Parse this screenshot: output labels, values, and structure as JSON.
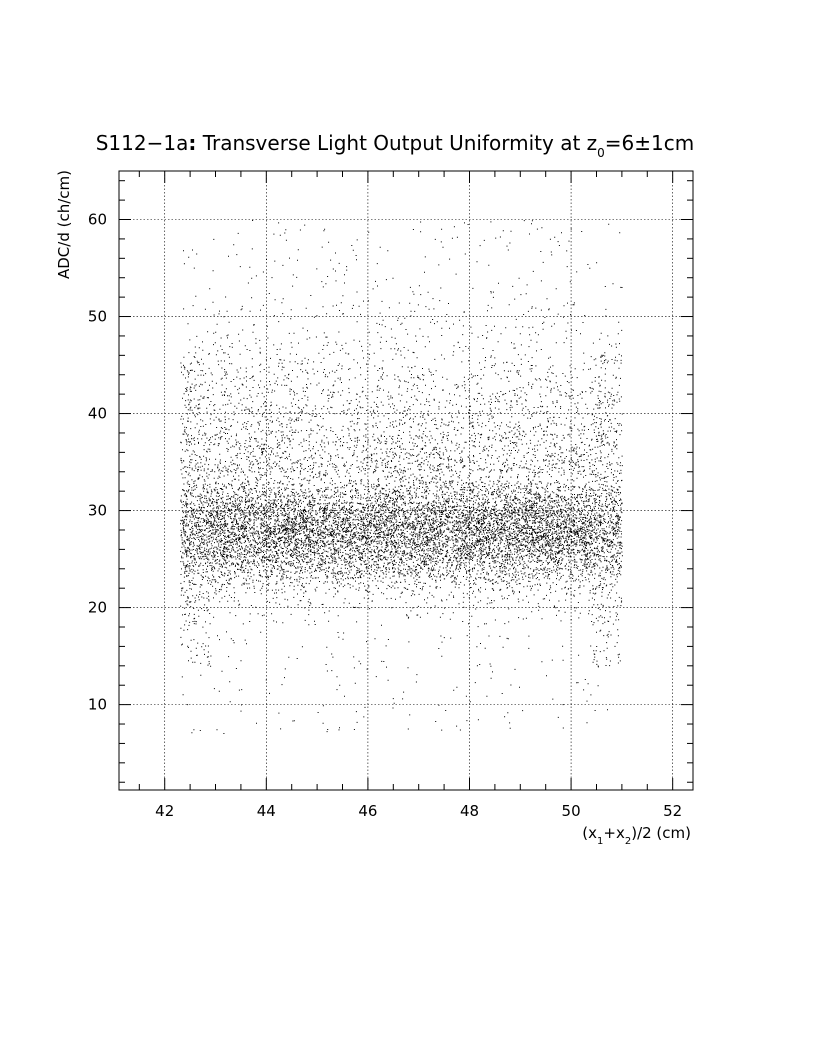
{
  "chart_data": {
    "type": "scatter",
    "title": {
      "prefix": "S112−1a",
      "colon": ":",
      "main": " Transverse Light Output Uniformity at z",
      "sub": "0",
      "suffix": "=6±1cm"
    },
    "xlabel": {
      "part1": "(x",
      "sub1": "1",
      "part2": "+x",
      "sub2": "2",
      "part3": ")/2 (cm)"
    },
    "ylabel": "ADC/d (ch/cm)",
    "xlim": [
      41.1,
      52.4
    ],
    "ylim": [
      1.2,
      65.0
    ],
    "xticks": [
      42,
      44,
      46,
      48,
      50,
      52
    ],
    "xtick_labels": [
      "42",
      "44",
      "46",
      "48",
      "50",
      "52"
    ],
    "yticks": [
      10,
      20,
      30,
      40,
      50,
      60
    ],
    "ytick_labels": [
      "10",
      "20",
      "30",
      "40",
      "50",
      "60"
    ],
    "grid": true,
    "point_color": "#000000",
    "series": [
      {
        "distribution": "dense band of points over x = 42.3 to 51.0 cm, core ADC/d about 24 to 34 ch/cm centred near 28, sparse tail up to 60 ch/cm and down to 7 ch/cm",
        "x_range": [
          42.3,
          51.0
        ],
        "y_core_range": [
          24,
          34
        ],
        "y_center": 28,
        "y_full_range": [
          7,
          60
        ],
        "approx_points": 14000
      }
    ]
  }
}
